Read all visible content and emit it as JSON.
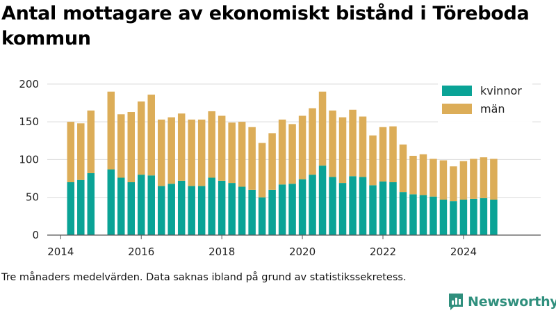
{
  "title": "Antal mottagare av ekonomiskt bistånd i Töreboda kommun",
  "note": "Tre månaders medelvärden. Data saknas ibland på grund av statistikssekretess.",
  "brand": "Newsworthy",
  "colors": {
    "kvinnor": "#0aa396",
    "man": "#dcad58",
    "grid": "#d9d9d9",
    "brand": "#2f8f7d"
  },
  "chart_data": {
    "type": "bar",
    "stacked": true,
    "x_type": "date",
    "x_ticks": [
      "2014",
      "2016",
      "2018",
      "2020",
      "2022",
      "2024"
    ],
    "xlim": [
      "2013-09-01",
      "2025-12-01"
    ],
    "ylim": [
      0,
      210
    ],
    "y_ticks": [
      0,
      50,
      100,
      150,
      200
    ],
    "grid": true,
    "legend_position": "top-right",
    "x": [
      "2014-04",
      "2014-07",
      "2014-10",
      "2015-04",
      "2015-07",
      "2015-10",
      "2016-01",
      "2016-04",
      "2016-07",
      "2016-10",
      "2017-01",
      "2017-04",
      "2017-07",
      "2017-10",
      "2018-01",
      "2018-04",
      "2018-07",
      "2018-10",
      "2019-01",
      "2019-04",
      "2019-07",
      "2019-10",
      "2020-01",
      "2020-04",
      "2020-07",
      "2020-10",
      "2021-01",
      "2021-04",
      "2021-07",
      "2021-10",
      "2022-01",
      "2022-04",
      "2022-07",
      "2022-10",
      "2023-01",
      "2023-04",
      "2023-07",
      "2023-10",
      "2024-01",
      "2024-04",
      "2024-07",
      "2024-10"
    ],
    "series": [
      {
        "name": "kvinnor",
        "color": "#0aa396",
        "values": [
          70,
          73,
          82,
          87,
          76,
          70,
          80,
          79,
          65,
          68,
          72,
          65,
          65,
          76,
          72,
          69,
          64,
          60,
          50,
          60,
          67,
          68,
          74,
          80,
          92,
          77,
          69,
          78,
          77,
          66,
          71,
          70,
          57,
          54,
          53,
          51,
          47,
          45,
          47,
          48,
          49,
          47
        ]
      },
      {
        "name": "män",
        "color": "#dcad58",
        "values": [
          80,
          75,
          83,
          103,
          84,
          93,
          97,
          107,
          88,
          88,
          89,
          88,
          88,
          88,
          86,
          80,
          86,
          83,
          72,
          75,
          86,
          79,
          84,
          88,
          98,
          88,
          87,
          88,
          80,
          66,
          72,
          74,
          63,
          51,
          54,
          50,
          52,
          46,
          51,
          53,
          54,
          54
        ]
      }
    ]
  }
}
